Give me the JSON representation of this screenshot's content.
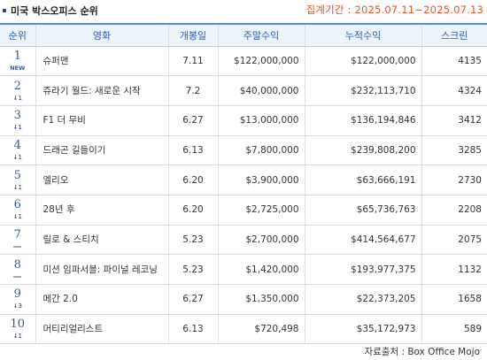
{
  "header": {
    "title": "미국 박스오피스 순위",
    "period_label": "집계기간 : 2025.07.11~2025.07.13"
  },
  "table": {
    "columns": [
      "순위",
      "영화",
      "개봉일",
      "주말수익",
      "누적수익",
      "스크린"
    ],
    "rows": [
      {
        "rank": "1",
        "change": "NEW",
        "change_type": "new",
        "title": "슈퍼맨",
        "release": "7.11",
        "weekend": "$122,000,000",
        "total": "$122,000,000",
        "screens": "4135"
      },
      {
        "rank": "2",
        "change": "1",
        "change_type": "down",
        "title": "쥬라기 월드: 새로운 시작",
        "release": "7.2",
        "weekend": "$40,000,000",
        "total": "$232,113,710",
        "screens": "4324"
      },
      {
        "rank": "3",
        "change": "1",
        "change_type": "down",
        "title": "F1 더 무비",
        "release": "6.27",
        "weekend": "$13,000,000",
        "total": "$136,194,846",
        "screens": "3412"
      },
      {
        "rank": "4",
        "change": "1",
        "change_type": "down",
        "title": "드래곤 길들이기",
        "release": "6.13",
        "weekend": "$7,800,000",
        "total": "$239,808,200",
        "screens": "3285"
      },
      {
        "rank": "5",
        "change": "1",
        "change_type": "down",
        "title": "엘리오",
        "release": "6.20",
        "weekend": "$3,900,000",
        "total": "$63,666,191",
        "screens": "2730"
      },
      {
        "rank": "6",
        "change": "1",
        "change_type": "down",
        "title": "28년 후",
        "release": "6.20",
        "weekend": "$2,725,000",
        "total": "$65,736,763",
        "screens": "2208"
      },
      {
        "rank": "7",
        "change": "",
        "change_type": "same",
        "title": "릴로 & 스티치",
        "release": "5.23",
        "weekend": "$2,700,000",
        "total": "$414,564,677",
        "screens": "2075"
      },
      {
        "rank": "8",
        "change": "",
        "change_type": "same",
        "title": "미션 임파서블: 파이널 레코닝",
        "release": "5.23",
        "weekend": "$1,420,000",
        "total": "$193,977,375",
        "screens": "1132"
      },
      {
        "rank": "9",
        "change": "3",
        "change_type": "down",
        "title": "메간 2.0",
        "release": "6.27",
        "weekend": "$1,350,000",
        "total": "$22,373,205",
        "screens": "1658"
      },
      {
        "rank": "10",
        "change": "1",
        "change_type": "down",
        "title": "머티리얼리스트",
        "release": "6.13",
        "weekend": "$720,498",
        "total": "$35,172,973",
        "screens": "589"
      }
    ]
  },
  "footer": {
    "source": "자료출처 : Box Office Mojo"
  },
  "colors": {
    "accent": "#2b5cab",
    "period": "#e8541b",
    "header_bg": "#ecf3fb"
  }
}
